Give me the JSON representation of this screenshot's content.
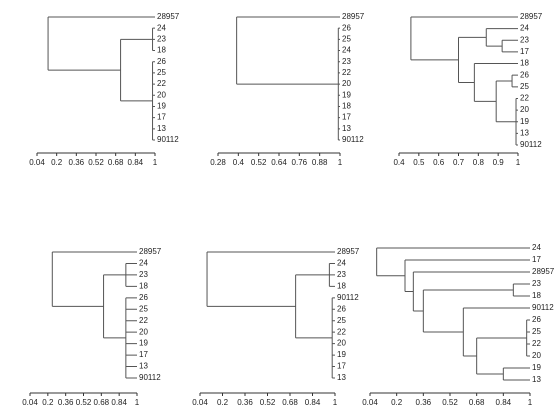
{
  "chart_data": [
    {
      "type": "dendrogram",
      "xlim": [
        0.04,
        1
      ],
      "xticks": [
        0.04,
        0.2,
        0.36,
        0.52,
        0.68,
        0.84,
        1
      ],
      "tree": {
        "height": 0.13,
        "children": [
          {
            "label": "28957"
          },
          {
            "height": 0.72,
            "children": [
              {
                "height": 0.98,
                "children": [
                  {
                    "label": "24"
                  },
                  {
                    "label": "23"
                  },
                  {
                    "label": "18"
                  }
                ]
              },
              {
                "height": 0.98,
                "children": [
                  {
                    "label": "26"
                  },
                  {
                    "label": "25"
                  },
                  {
                    "label": "22"
                  },
                  {
                    "label": "20"
                  },
                  {
                    "label": "19"
                  },
                  {
                    "label": "17"
                  },
                  {
                    "label": "13"
                  },
                  {
                    "label": "90112"
                  }
                ]
              }
            ]
          }
        ]
      }
    },
    {
      "type": "dendrogram",
      "xlim": [
        0.28,
        1
      ],
      "xticks": [
        0.28,
        0.4,
        0.52,
        0.64,
        0.76,
        0.88,
        1
      ],
      "tree": {
        "height": 0.39,
        "children": [
          {
            "label": "28957"
          },
          {
            "height": 0.99,
            "children": [
              {
                "label": "26"
              },
              {
                "label": "25"
              },
              {
                "label": "24"
              },
              {
                "label": "23"
              },
              {
                "label": "22"
              },
              {
                "label": "20"
              },
              {
                "label": "19"
              },
              {
                "label": "18"
              },
              {
                "label": "17"
              },
              {
                "label": "13"
              },
              {
                "label": "90112"
              }
            ]
          }
        ]
      }
    },
    {
      "type": "dendrogram",
      "xlim": [
        0.4,
        1
      ],
      "xticks": [
        0.4,
        0.5,
        0.6,
        0.7,
        0.8,
        0.9,
        1
      ],
      "tree": {
        "height": 0.46,
        "children": [
          {
            "label": "28957"
          },
          {
            "height": 0.7,
            "children": [
              {
                "height": 0.84,
                "children": [
                  {
                    "label": "24"
                  },
                  {
                    "height": 0.92,
                    "children": [
                      {
                        "label": "23"
                      },
                      {
                        "label": "17"
                      }
                    ]
                  }
                ]
              },
              {
                "height": 0.78,
                "children": [
                  {
                    "label": "18"
                  },
                  {
                    "height": 0.89,
                    "children": [
                      {
                        "height": 0.97,
                        "children": [
                          {
                            "label": "26"
                          },
                          {
                            "label": "25"
                          }
                        ]
                      },
                      {
                        "height": 0.99,
                        "children": [
                          {
                            "label": "22"
                          },
                          {
                            "label": "20"
                          },
                          {
                            "label": "19"
                          },
                          {
                            "label": "13"
                          },
                          {
                            "label": "90112"
                          }
                        ]
                      }
                    ]
                  }
                ]
              }
            ]
          }
        ]
      }
    },
    {
      "type": "dendrogram",
      "xlim": [
        0.04,
        1
      ],
      "xticks": [
        0.04,
        0.2,
        0.36,
        0.52,
        0.68,
        0.84,
        1
      ],
      "tree": {
        "height": 0.24,
        "children": [
          {
            "label": "28957"
          },
          {
            "height": 0.7,
            "children": [
              {
                "height": 0.9,
                "children": [
                  {
                    "label": "24"
                  },
                  {
                    "label": "23"
                  },
                  {
                    "label": "18"
                  }
                ]
              },
              {
                "height": 0.9,
                "children": [
                  {
                    "label": "26"
                  },
                  {
                    "label": "25"
                  },
                  {
                    "label": "22"
                  },
                  {
                    "label": "20"
                  },
                  {
                    "label": "19"
                  },
                  {
                    "label": "17"
                  },
                  {
                    "label": "13"
                  },
                  {
                    "label": "90112"
                  }
                ]
              }
            ]
          }
        ]
      }
    },
    {
      "type": "dendrogram",
      "xlim": [
        0.04,
        1
      ],
      "xticks": [
        0.04,
        0.2,
        0.36,
        0.52,
        0.68,
        0.84,
        1
      ],
      "tree": {
        "height": 0.09,
        "children": [
          {
            "label": "28957"
          },
          {
            "height": 0.72,
            "children": [
              {
                "height": 0.96,
                "children": [
                  {
                    "label": "24"
                  },
                  {
                    "label": "23"
                  },
                  {
                    "label": "18"
                  }
                ]
              },
              {
                "height": 0.98,
                "children": [
                  {
                    "label": "90112"
                  },
                  {
                    "label": "26"
                  },
                  {
                    "label": "25"
                  },
                  {
                    "label": "22"
                  },
                  {
                    "label": "20"
                  },
                  {
                    "label": "19"
                  },
                  {
                    "label": "17"
                  },
                  {
                    "label": "13"
                  }
                ]
              }
            ]
          }
        ]
      }
    },
    {
      "type": "dendrogram",
      "xlim": [
        0.04,
        1
      ],
      "xticks": [
        0.04,
        0.2,
        0.36,
        0.52,
        0.68,
        0.84,
        1
      ],
      "tree": {
        "height": 0.08,
        "children": [
          {
            "label": "24"
          },
          {
            "height": 0.25,
            "children": [
              {
                "label": "17"
              },
              {
                "height": 0.3,
                "children": [
                  {
                    "label": "28957"
                  },
                  {
                    "height": 0.36,
                    "children": [
                      {
                        "height": 0.9,
                        "children": [
                          {
                            "label": "23"
                          },
                          {
                            "label": "18"
                          }
                        ]
                      },
                      {
                        "height": 0.6,
                        "children": [
                          {
                            "label": "90112"
                          },
                          {
                            "height": 0.68,
                            "children": [
                              {
                                "height": 0.98,
                                "children": [
                                  {
                                    "label": "26"
                                  },
                                  {
                                    "label": "25"
                                  },
                                  {
                                    "label": "22"
                                  },
                                  {
                                    "label": "20"
                                  }
                                ]
                              },
                              {
                                "height": 0.84,
                                "children": [
                                  {
                                    "label": "19"
                                  },
                                  {
                                    "label": "13"
                                  }
                                ]
                              }
                            ]
                          }
                        ]
                      }
                    ]
                  }
                ]
              }
            ]
          }
        ]
      }
    }
  ]
}
